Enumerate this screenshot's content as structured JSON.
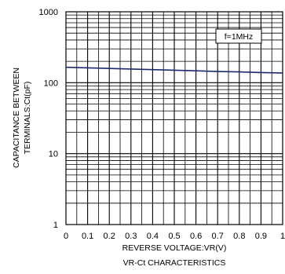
{
  "chart_data": {
    "type": "line",
    "title": "VR-Ct CHARACTERISTICS",
    "xlabel": "REVERSE VOLTAGE:VR(V)",
    "ylabel_line1": "CAPACITANCE BETWEEN",
    "ylabel_line2": "TERMINALS:Ct(pF)",
    "annotation": "f=1MHz",
    "xlim": [
      0,
      1
    ],
    "ylim": [
      1,
      1000
    ],
    "yscale": "log",
    "grid": true,
    "xticks": [
      "0",
      "0.1",
      "0.2",
      "0.3",
      "0.4",
      "0.5",
      "0.6",
      "0.7",
      "0.8",
      "0.9",
      "1"
    ],
    "yticks": [
      "1",
      "10",
      "100",
      "1000"
    ],
    "series": [
      {
        "x": [
          0,
          0.1,
          0.2,
          0.3,
          0.4,
          0.5,
          0.6,
          0.7,
          0.8,
          0.9,
          1.0
        ],
        "y": [
          165,
          162,
          159,
          156,
          153,
          150,
          147,
          144,
          142,
          139,
          137
        ]
      }
    ],
    "line_color": "#1a2a6c"
  }
}
